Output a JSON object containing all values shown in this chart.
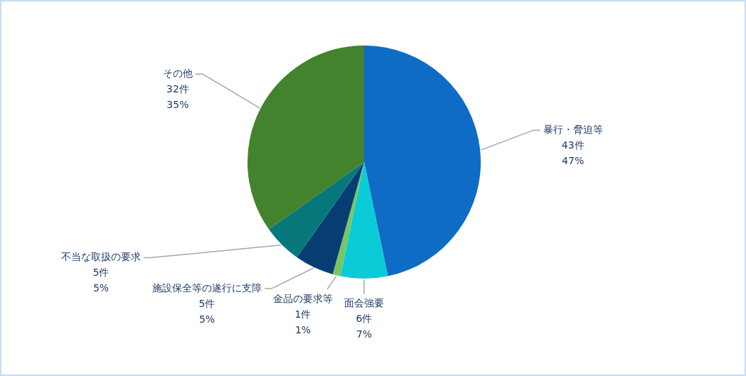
{
  "chart_data": {
    "type": "pie",
    "categories": [
      "暴行・脅迫等",
      "面会強要",
      "金品の要求等",
      "施設保全等の遂行に支障",
      "不当な取扱の要求",
      "その他"
    ],
    "values": [
      43,
      6,
      1,
      5,
      5,
      32
    ],
    "colors": [
      "#0e6cc4",
      "#0bcbd6",
      "#7ac561",
      "#083d74",
      "#06787c",
      "#44832e"
    ],
    "value_labels": [
      "43件\n47%",
      "6件\n7%",
      "1件\n1%",
      "5件\n5%",
      "5件\n5%",
      "32件\n35%"
    ]
  }
}
